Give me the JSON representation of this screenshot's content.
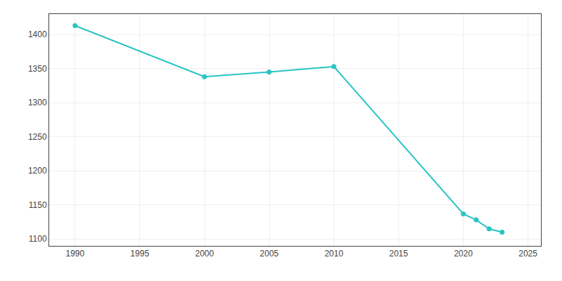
{
  "chart_data": {
    "type": "line",
    "x": [
      1990,
      2000,
      2005,
      2010,
      2020,
      2021,
      2022,
      2023
    ],
    "values": [
      1413,
      1338,
      1345,
      1353,
      1137,
      1128,
      1115,
      1110
    ],
    "color": "#2AC4C4",
    "marker": "circle",
    "xlim": [
      1988,
      2026
    ],
    "ylim": [
      1090,
      1430
    ],
    "xticks": [
      1990,
      1995,
      2000,
      2005,
      2010,
      2015,
      2020,
      2025
    ],
    "yticks": [
      1100,
      1150,
      1200,
      1250,
      1300,
      1350,
      1400
    ],
    "grid": true
  }
}
